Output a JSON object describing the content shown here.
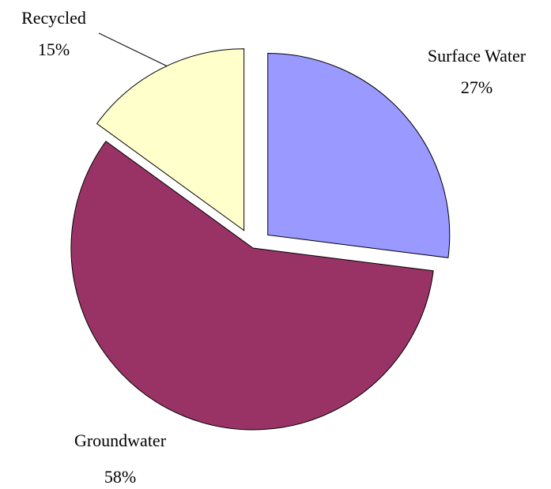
{
  "chart_data": {
    "type": "pie",
    "categories": [
      "Surface Water",
      "Groundwater",
      "Recycled"
    ],
    "values": [
      27,
      58,
      15
    ],
    "value_labels": [
      "27%",
      "58%",
      "15%"
    ],
    "colors": [
      "#9999ff",
      "#993366",
      "#ffffcc"
    ]
  }
}
